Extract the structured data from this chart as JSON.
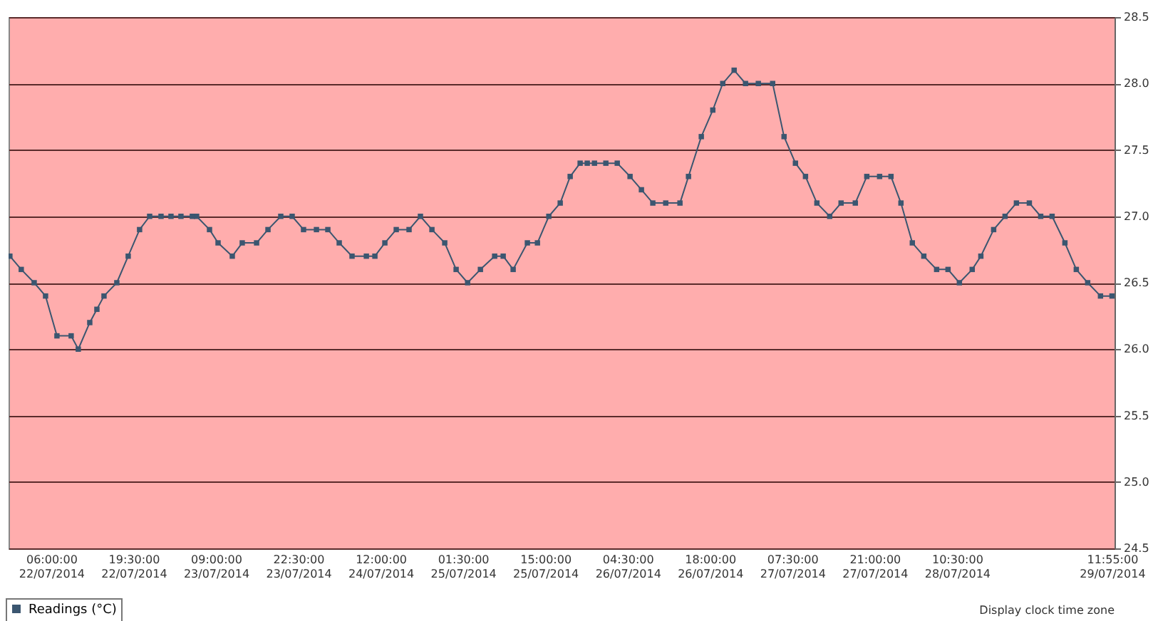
{
  "chart_data": {
    "type": "line",
    "ylim": [
      24.5,
      28.5
    ],
    "yticks": [
      {
        "value": 24.5,
        "label": "24.5"
      },
      {
        "value": 25,
        "label": "25.0"
      },
      {
        "value": 25.5,
        "label": "25.5"
      },
      {
        "value": 26,
        "label": "26.0"
      },
      {
        "value": 26.5,
        "label": "26.5"
      },
      {
        "value": 27,
        "label": "27.0"
      },
      {
        "value": 27.5,
        "label": "27.5"
      },
      {
        "value": 28,
        "label": "28.0"
      },
      {
        "value": 28.5,
        "label": "28.5"
      }
    ],
    "xlim": [
      "2014-07-21T23:00",
      "2014-07-29T12:20"
    ],
    "xticks": [
      {
        "value": "2014-07-22T06:00",
        "label": "06:00:00\n22/07/2014"
      },
      {
        "value": "2014-07-22T19:30",
        "label": "19:30:00\n22/07/2014"
      },
      {
        "value": "2014-07-23T09:00",
        "label": "09:00:00\n23/07/2014"
      },
      {
        "value": "2014-07-23T22:30",
        "label": "22:30:00\n23/07/2014"
      },
      {
        "value": "2014-07-24T12:00",
        "label": "12:00:00\n24/07/2014"
      },
      {
        "value": "2014-07-25T01:30",
        "label": "01:30:00\n25/07/2014"
      },
      {
        "value": "2014-07-25T15:00",
        "label": "15:00:00\n25/07/2014"
      },
      {
        "value": "2014-07-26T04:30",
        "label": "04:30:00\n26/07/2014"
      },
      {
        "value": "2014-07-26T18:00",
        "label": "18:00:00\n26/07/2014"
      },
      {
        "value": "2014-07-27T07:30",
        "label": "07:30:00\n27/07/2014"
      },
      {
        "value": "2014-07-27T21:00",
        "label": "21:00:00\n27/07/2014"
      },
      {
        "value": "2014-07-28T10:30",
        "label": "10:30:00\n28/07/2014"
      },
      {
        "value": "2014-07-29T11:55",
        "label": "11:55:00\n29/07/2014"
      }
    ],
    "x": [
      "2014-07-21T23:13",
      "2014-07-22T01:05",
      "2014-07-22T03:12",
      "2014-07-22T05:04",
      "2014-07-22T06:56",
      "2014-07-22T09:16",
      "2014-07-22T10:26",
      "2014-07-22T12:19",
      "2014-07-22T13:29",
      "2014-07-22T14:39",
      "2014-07-22T16:45",
      "2014-07-22T18:37",
      "2014-07-22T20:29",
      "2014-07-22T22:08",
      "2014-07-23T00:00",
      "2014-07-23T01:38",
      "2014-07-23T03:16",
      "2014-07-23T05:08",
      "2014-07-23T05:50",
      "2014-07-23T07:57",
      "2014-07-23T09:21",
      "2014-07-23T11:41",
      "2014-07-23T13:19",
      "2014-07-23T15:40",
      "2014-07-23T17:32",
      "2014-07-23T19:38",
      "2014-07-23T21:30",
      "2014-07-23T23:22",
      "2014-07-24T01:29",
      "2014-07-24T03:21",
      "2014-07-24T05:13",
      "2014-07-24T07:19",
      "2014-07-24T09:40",
      "2014-07-24T11:04",
      "2014-07-24T12:42",
      "2014-07-24T14:34",
      "2014-07-24T16:40",
      "2014-07-24T18:32",
      "2014-07-24T20:25",
      "2014-07-24T22:31",
      "2014-07-25T00:23",
      "2014-07-25T02:16",
      "2014-07-25T04:22",
      "2014-07-25T06:42",
      "2014-07-25T08:06",
      "2014-07-25T09:44",
      "2014-07-25T12:04",
      "2014-07-25T13:43",
      "2014-07-25T15:35",
      "2014-07-25T17:27",
      "2014-07-25T19:05",
      "2014-07-25T20:43",
      "2014-07-25T21:53",
      "2014-07-25T23:04",
      "2014-07-26T00:56",
      "2014-07-26T02:48",
      "2014-07-26T04:54",
      "2014-07-26T06:46",
      "2014-07-26T08:38",
      "2014-07-26T10:45",
      "2014-07-26T13:05",
      "2014-07-26T14:29",
      "2014-07-26T16:35",
      "2014-07-26T18:28",
      "2014-07-26T20:06",
      "2014-07-26T21:58",
      "2014-07-26T23:50",
      "2014-07-27T01:56",
      "2014-07-27T04:17",
      "2014-07-27T06:09",
      "2014-07-27T08:01",
      "2014-07-27T09:40",
      "2014-07-27T11:32",
      "2014-07-27T13:38",
      "2014-07-27T15:30",
      "2014-07-27T17:50",
      "2014-07-27T19:43",
      "2014-07-27T21:49",
      "2014-07-27T23:41",
      "2014-07-28T01:19",
      "2014-07-28T03:11",
      "2014-07-28T05:04",
      "2014-07-28T07:10",
      "2014-07-28T09:02",
      "2014-07-28T10:54",
      "2014-07-28T13:00",
      "2014-07-28T14:25",
      "2014-07-28T16:31",
      "2014-07-28T18:23",
      "2014-07-28T20:15",
      "2014-07-28T22:22",
      "2014-07-29T00:14",
      "2014-07-29T02:06",
      "2014-07-29T04:12",
      "2014-07-29T06:04",
      "2014-07-29T07:56",
      "2014-07-29T10:02",
      "2014-07-29T11:55"
    ],
    "series": [
      {
        "name": "Readings (°C)",
        "color": "#3b5670",
        "values": [
          26.7,
          26.6,
          26.5,
          26.4,
          26.1,
          26.1,
          26.0,
          26.2,
          26.3,
          26.4,
          26.5,
          26.7,
          26.9,
          27.0,
          27.0,
          27.0,
          27.0,
          27.0,
          27.0,
          26.9,
          26.8,
          26.7,
          26.8,
          26.8,
          26.9,
          27.0,
          27.0,
          26.9,
          26.9,
          26.9,
          26.8,
          26.7,
          26.7,
          26.7,
          26.8,
          26.9,
          26.9,
          27.0,
          26.9,
          26.8,
          26.6,
          26.5,
          26.6,
          26.7,
          26.7,
          26.6,
          26.8,
          26.8,
          27.0,
          27.1,
          27.3,
          27.4,
          27.4,
          27.4,
          27.4,
          27.4,
          27.3,
          27.2,
          27.1,
          27.1,
          27.1,
          27.3,
          27.6,
          27.8,
          28.0,
          28.1,
          28.0,
          28.0,
          28.0,
          27.6,
          27.4,
          27.3,
          27.1,
          27.0,
          27.1,
          27.1,
          27.3,
          27.3,
          27.3,
          27.1,
          26.8,
          26.7,
          26.6,
          26.6,
          26.5,
          26.6,
          26.7,
          26.9,
          27.0,
          27.1,
          27.1,
          27.0,
          27.0,
          26.8,
          26.6,
          26.5,
          26.4,
          26.4
        ]
      }
    ],
    "grid": "y",
    "marker": "square",
    "line_style": "solid",
    "legend": "bottom left",
    "annotations": [
      "Display clock time zone"
    ]
  }
}
